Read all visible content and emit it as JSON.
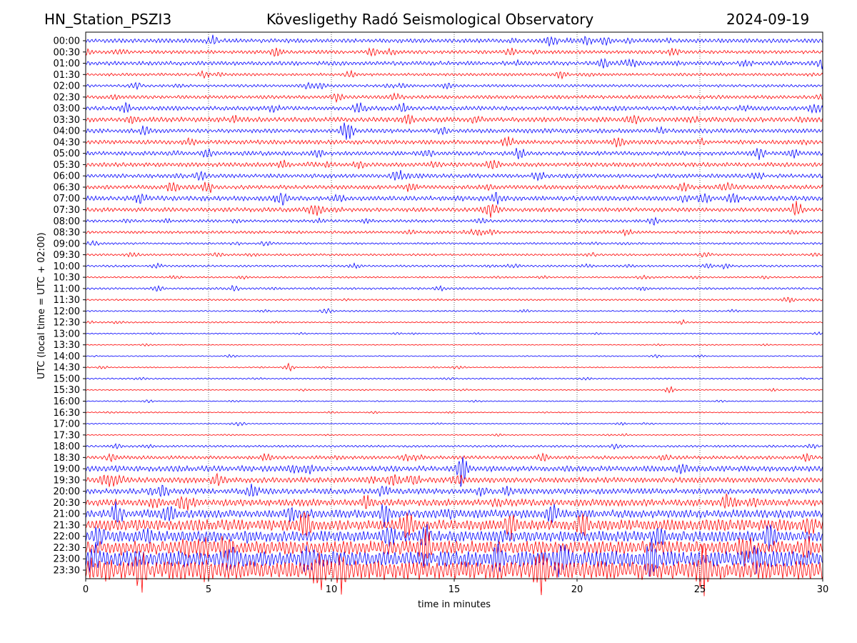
{
  "header": {
    "station": "HN_Station_PSZI3",
    "observatory": "Kövesligethy Radó Seismological Observatory",
    "date": "2024-09-19"
  },
  "chart_data": {
    "type": "line",
    "title": "Kövesligethy Radó Seismological Observatory",
    "xlabel": "time in minutes",
    "ylabel": "UTC (local time = UTC + 02:00)",
    "xlim": [
      0,
      30
    ],
    "x_ticks": [
      "0",
      "5",
      "10",
      "15",
      "20",
      "25",
      "30"
    ],
    "grid": "vertical dotted at 5-minute intervals",
    "colors": [
      "#0000ff",
      "#ff0000"
    ],
    "rows": [
      "00:00",
      "00:30",
      "01:00",
      "01:30",
      "02:00",
      "02:30",
      "03:00",
      "03:30",
      "04:00",
      "04:30",
      "05:00",
      "05:30",
      "06:00",
      "06:30",
      "07:00",
      "07:30",
      "08:00",
      "08:30",
      "09:00",
      "09:30",
      "10:00",
      "10:30",
      "11:00",
      "11:30",
      "12:00",
      "12:30",
      "13:00",
      "13:30",
      "14:00",
      "14:30",
      "15:00",
      "15:30",
      "16:00",
      "16:30",
      "17:00",
      "17:30",
      "18:00",
      "18:30",
      "19:00",
      "19:30",
      "20:00",
      "20:30",
      "21:00",
      "21:30",
      "22:00",
      "22:30",
      "23:00",
      "23:30"
    ],
    "relative_amplitude": [
      3,
      2.5,
      3,
      2,
      2,
      2.5,
      3,
      3.5,
      3,
      3,
      3,
      3,
      3,
      3,
      3.5,
      3,
      2,
      2,
      1.5,
      1.5,
      1.5,
      1.2,
      1.5,
      1.2,
      1,
      1,
      0.8,
      0.7,
      0.8,
      0.8,
      1,
      0.8,
      0.8,
      0.8,
      0.8,
      0.8,
      1.5,
      2.5,
      4,
      4,
      4,
      5,
      6,
      8,
      8,
      10,
      12,
      14
    ]
  }
}
